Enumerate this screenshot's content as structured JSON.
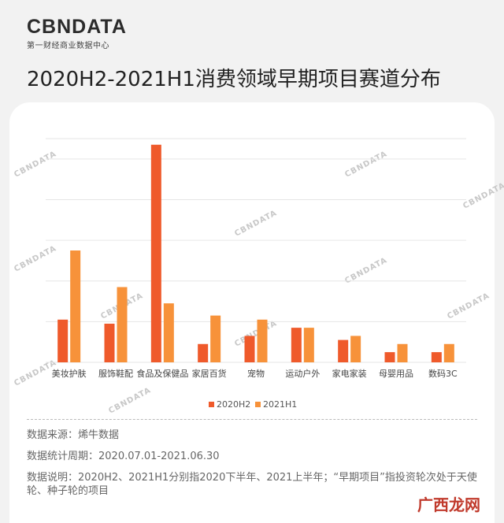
{
  "brand": {
    "logo": "CBNDATA",
    "subtitle": "第一财经商业数据中心"
  },
  "colors": {
    "series1": "#ef5a2b",
    "series2": "#f7923a",
    "watermark": "#c8c8c8"
  },
  "chart_data": {
    "type": "bar",
    "title": "2020H2-2021H1消费领域早期项目赛道分布",
    "categories": [
      "美妆护肤",
      "服饰鞋配",
      "食品及保健品",
      "家居百货",
      "宠物",
      "运动户外",
      "家电家装",
      "母婴用品",
      "数码3C"
    ],
    "series": [
      {
        "name": "2020H2",
        "values": [
          10.5,
          9.5,
          53.5,
          4.5,
          6.5,
          8.5,
          5.5,
          2.5,
          2.5
        ]
      },
      {
        "name": "2021H1",
        "values": [
          27.5,
          18.5,
          14.5,
          11.5,
          10.5,
          8.5,
          6.5,
          4.5,
          4.5
        ]
      }
    ],
    "ylim": [
      0,
      55
    ],
    "grid": true,
    "legend": "bottom"
  },
  "notes": {
    "source": "数据来源：烯牛数据",
    "period": "数据统计周期：2020.07.01-2021.06.30",
    "desc": "数据说明：2020H2、2021H1分别指2020下半年、2021上半年；“早期项目”指投资轮次处于天使轮、种子轮的项目"
  },
  "site_mark": "广西龙网"
}
